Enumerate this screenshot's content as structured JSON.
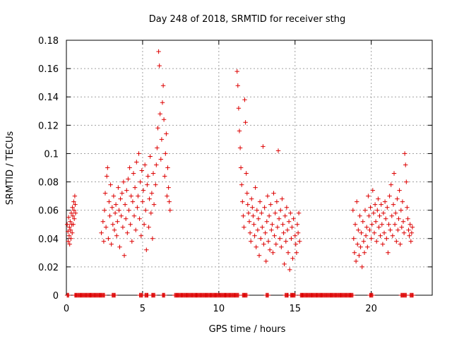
{
  "chart_data": {
    "type": "scatter",
    "title": "Day 248 of 2018, SRMTID for receiver sthg",
    "xlabel": "GPS time / hours",
    "ylabel": "SRMTID / TECUs",
    "xlim": [
      0,
      24
    ],
    "ylim": [
      0,
      0.18
    ],
    "grid": true,
    "legend": "none",
    "marker": "+",
    "colors": {
      "points": "#dd0000",
      "grid": "#a0a0a0",
      "axes": "#000000"
    },
    "x_ticks": [
      0,
      5,
      10,
      15,
      20
    ],
    "x_tick_labels": [
      "0",
      "5",
      "10",
      "15",
      "20"
    ],
    "y_ticks": [
      0,
      0.02,
      0.04,
      0.06,
      0.08,
      0.1,
      0.12,
      0.14,
      0.16,
      0.18
    ],
    "y_tick_labels": [
      "0",
      "0.02",
      "0.04",
      "0.06",
      "0.08",
      "0.1",
      "0.12",
      "0.14",
      "0.16",
      "0.18"
    ],
    "series": [
      {
        "name": "SRMTID",
        "points": [
          [
            0.05,
            0.05
          ],
          [
            0.1,
            0.045
          ],
          [
            0.12,
            0.038
          ],
          [
            0.15,
            0.055
          ],
          [
            0.18,
            0.042
          ],
          [
            0.2,
            0.048
          ],
          [
            0.22,
            0.036
          ],
          [
            0.25,
            0.052
          ],
          [
            0.28,
            0.046
          ],
          [
            0.3,
            0.04
          ],
          [
            0.32,
            0.058
          ],
          [
            0.35,
            0.05
          ],
          [
            0.38,
            0.044
          ],
          [
            0.4,
            0.062
          ],
          [
            0.42,
            0.056
          ],
          [
            0.45,
            0.05
          ],
          [
            0.48,
            0.066
          ],
          [
            0.5,
            0.06
          ],
          [
            0.52,
            0.054
          ],
          [
            0.55,
            0.07
          ],
          [
            0.58,
            0.064
          ],
          [
            0.6,
            0.058
          ],
          [
            2.3,
            0.044
          ],
          [
            2.4,
            0.052
          ],
          [
            2.45,
            0.038
          ],
          [
            2.5,
            0.06
          ],
          [
            2.55,
            0.072
          ],
          [
            2.6,
            0.048
          ],
          [
            2.65,
            0.084
          ],
          [
            2.7,
            0.09
          ],
          [
            2.75,
            0.04
          ],
          [
            2.8,
            0.066
          ],
          [
            2.85,
            0.056
          ],
          [
            2.9,
            0.078
          ],
          [
            2.95,
            0.036
          ],
          [
            3.0,
            0.062
          ],
          [
            3.05,
            0.05
          ],
          [
            3.1,
            0.07
          ],
          [
            3.15,
            0.046
          ],
          [
            3.2,
            0.058
          ],
          [
            3.25,
            0.064
          ],
          [
            3.3,
            0.042
          ],
          [
            3.35,
            0.052
          ],
          [
            3.4,
            0.076
          ],
          [
            3.45,
            0.06
          ],
          [
            3.5,
            0.034
          ],
          [
            3.55,
            0.068
          ],
          [
            3.6,
            0.056
          ],
          [
            3.65,
            0.072
          ],
          [
            3.7,
            0.048
          ],
          [
            3.75,
            0.08
          ],
          [
            3.8,
            0.028
          ],
          [
            3.85,
            0.064
          ],
          [
            3.9,
            0.054
          ],
          [
            3.95,
            0.074
          ],
          [
            4.0,
            0.044
          ],
          [
            4.05,
            0.082
          ],
          [
            4.1,
            0.06
          ],
          [
            4.15,
            0.09
          ],
          [
            4.2,
            0.05
          ],
          [
            4.25,
            0.07
          ],
          [
            4.3,
            0.038
          ],
          [
            4.35,
            0.066
          ],
          [
            4.4,
            0.086
          ],
          [
            4.45,
            0.056
          ],
          [
            4.5,
            0.076
          ],
          [
            4.55,
            0.046
          ],
          [
            4.6,
            0.094
          ],
          [
            4.65,
            0.062
          ],
          [
            4.7,
            0.07
          ],
          [
            4.75,
            0.1
          ],
          [
            4.8,
            0.054
          ],
          [
            4.85,
            0.08
          ],
          [
            4.9,
            0.042
          ],
          [
            4.95,
            0.088
          ],
          [
            5.0,
            0.066
          ],
          [
            5.05,
            0.074
          ],
          [
            5.1,
            0.05
          ],
          [
            5.15,
            0.092
          ],
          [
            5.2,
            0.06
          ],
          [
            5.25,
            0.032
          ],
          [
            5.3,
            0.078
          ],
          [
            5.35,
            0.084
          ],
          [
            5.4,
            0.048
          ],
          [
            5.45,
            0.068
          ],
          [
            5.5,
            0.098
          ],
          [
            5.55,
            0.058
          ],
          [
            5.6,
            0.072
          ],
          [
            5.65,
            0.04
          ],
          [
            5.7,
            0.086
          ],
          [
            5.75,
            0.064
          ],
          [
            5.85,
            0.078
          ],
          [
            5.9,
            0.092
          ],
          [
            5.95,
            0.104
          ],
          [
            6.0,
            0.118
          ],
          [
            6.05,
            0.172
          ],
          [
            6.1,
            0.162
          ],
          [
            6.15,
            0.128
          ],
          [
            6.2,
            0.096
          ],
          [
            6.25,
            0.11
          ],
          [
            6.3,
            0.136
          ],
          [
            6.35,
            0.148
          ],
          [
            6.4,
            0.124
          ],
          [
            6.45,
            0.084
          ],
          [
            6.5,
            0.1
          ],
          [
            6.55,
            0.114
          ],
          [
            6.6,
            0.07
          ],
          [
            6.65,
            0.09
          ],
          [
            6.7,
            0.076
          ],
          [
            6.75,
            0.066
          ],
          [
            6.8,
            0.06
          ],
          [
            11.2,
            0.158
          ],
          [
            11.25,
            0.148
          ],
          [
            11.3,
            0.132
          ],
          [
            11.35,
            0.116
          ],
          [
            11.4,
            0.104
          ],
          [
            11.45,
            0.09
          ],
          [
            11.5,
            0.078
          ],
          [
            11.55,
            0.066
          ],
          [
            11.6,
            0.056
          ],
          [
            11.65,
            0.048
          ],
          [
            11.7,
            0.138
          ],
          [
            11.75,
            0.122
          ],
          [
            11.8,
            0.086
          ],
          [
            11.85,
            0.072
          ],
          [
            11.9,
            0.064
          ],
          [
            11.95,
            0.058
          ],
          [
            12.0,
            0.052
          ],
          [
            12.05,
            0.044
          ],
          [
            12.1,
            0.038
          ],
          [
            12.15,
            0.068
          ],
          [
            12.2,
            0.062
          ],
          [
            12.25,
            0.056
          ],
          [
            12.3,
            0.05
          ],
          [
            12.35,
            0.042
          ],
          [
            12.4,
            0.076
          ],
          [
            12.45,
            0.034
          ],
          [
            12.5,
            0.06
          ],
          [
            12.55,
            0.046
          ],
          [
            12.6,
            0.054
          ],
          [
            12.65,
            0.028
          ],
          [
            12.7,
            0.066
          ],
          [
            12.75,
            0.04
          ],
          [
            12.8,
            0.058
          ],
          [
            12.85,
            0.048
          ],
          [
            12.9,
            0.105
          ],
          [
            12.95,
            0.036
          ],
          [
            13.0,
            0.062
          ],
          [
            13.05,
            0.044
          ],
          [
            13.1,
            0.024
          ],
          [
            13.15,
            0.052
          ],
          [
            13.2,
            0.07
          ],
          [
            13.25,
            0.038
          ],
          [
            13.3,
            0.056
          ],
          [
            13.35,
            0.032
          ],
          [
            13.4,
            0.064
          ],
          [
            13.45,
            0.046
          ],
          [
            13.5,
            0.05
          ],
          [
            13.55,
            0.03
          ],
          [
            13.6,
            0.072
          ],
          [
            13.65,
            0.042
          ],
          [
            13.7,
            0.058
          ],
          [
            13.75,
            0.036
          ],
          [
            13.8,
            0.066
          ],
          [
            13.85,
            0.048
          ],
          [
            13.9,
            0.102
          ],
          [
            13.95,
            0.054
          ],
          [
            14.0,
            0.04
          ],
          [
            14.05,
            0.06
          ],
          [
            14.1,
            0.034
          ],
          [
            14.15,
            0.068
          ],
          [
            14.2,
            0.05
          ],
          [
            14.25,
            0.044
          ],
          [
            14.3,
            0.022
          ],
          [
            14.35,
            0.056
          ],
          [
            14.4,
            0.038
          ],
          [
            14.45,
            0.062
          ],
          [
            14.5,
            0.046
          ],
          [
            14.55,
            0.03
          ],
          [
            14.6,
            0.052
          ],
          [
            14.65,
            0.018
          ],
          [
            14.7,
            0.058
          ],
          [
            14.75,
            0.04
          ],
          [
            14.8,
            0.048
          ],
          [
            14.85,
            0.026
          ],
          [
            14.9,
            0.054
          ],
          [
            15.0,
            0.042
          ],
          [
            15.05,
            0.036
          ],
          [
            15.1,
            0.03
          ],
          [
            15.15,
            0.05
          ],
          [
            15.2,
            0.044
          ],
          [
            15.25,
            0.058
          ],
          [
            15.3,
            0.038
          ],
          [
            18.8,
            0.06
          ],
          [
            18.85,
            0.04
          ],
          [
            18.9,
            0.03
          ],
          [
            18.95,
            0.05
          ],
          [
            19.0,
            0.024
          ],
          [
            19.05,
            0.066
          ],
          [
            19.1,
            0.036
          ],
          [
            19.15,
            0.046
          ],
          [
            19.2,
            0.028
          ],
          [
            19.25,
            0.056
          ],
          [
            19.3,
            0.034
          ],
          [
            19.35,
            0.044
          ],
          [
            19.4,
            0.02
          ],
          [
            19.45,
            0.052
          ],
          [
            19.5,
            0.038
          ],
          [
            19.55,
            0.03
          ],
          [
            19.6,
            0.06
          ],
          [
            19.65,
            0.042
          ],
          [
            19.7,
            0.048
          ],
          [
            19.75,
            0.034
          ],
          [
            19.8,
            0.07
          ],
          [
            19.85,
            0.056
          ],
          [
            19.9,
            0.046
          ],
          [
            19.95,
            0.062
          ],
          [
            20.0,
            0.04
          ],
          [
            20.05,
            0.05
          ],
          [
            20.1,
            0.074
          ],
          [
            20.15,
            0.058
          ],
          [
            20.2,
            0.044
          ],
          [
            20.25,
            0.064
          ],
          [
            20.3,
            0.052
          ],
          [
            20.35,
            0.038
          ],
          [
            20.4,
            0.06
          ],
          [
            20.45,
            0.068
          ],
          [
            20.5,
            0.048
          ],
          [
            20.55,
            0.056
          ],
          [
            20.6,
            0.042
          ],
          [
            20.65,
            0.064
          ],
          [
            20.7,
            0.05
          ],
          [
            20.75,
            0.036
          ],
          [
            20.8,
            0.058
          ],
          [
            20.85,
            0.044
          ],
          [
            20.9,
            0.066
          ],
          [
            20.95,
            0.054
          ],
          [
            21.0,
            0.04
          ],
          [
            21.05,
            0.062
          ],
          [
            21.1,
            0.03
          ],
          [
            21.15,
            0.05
          ],
          [
            21.2,
            0.07
          ],
          [
            21.25,
            0.046
          ],
          [
            21.3,
            0.078
          ],
          [
            21.35,
            0.056
          ],
          [
            21.4,
            0.042
          ],
          [
            21.45,
            0.064
          ],
          [
            21.5,
            0.086
          ],
          [
            21.55,
            0.05
          ],
          [
            21.6,
            0.058
          ],
          [
            21.65,
            0.038
          ],
          [
            21.7,
            0.068
          ],
          [
            21.75,
            0.046
          ],
          [
            21.8,
            0.054
          ],
          [
            21.85,
            0.074
          ],
          [
            21.9,
            0.036
          ],
          [
            21.95,
            0.06
          ],
          [
            22.0,
            0.048
          ],
          [
            22.05,
            0.066
          ],
          [
            22.1,
            0.052
          ],
          [
            22.15,
            0.044
          ],
          [
            22.2,
            0.1
          ],
          [
            22.25,
            0.092
          ],
          [
            22.3,
            0.08
          ],
          [
            22.35,
            0.062
          ],
          [
            22.4,
            0.054
          ],
          [
            22.45,
            0.046
          ],
          [
            22.5,
            0.042
          ],
          [
            22.55,
            0.05
          ],
          [
            22.6,
            0.038
          ],
          [
            22.65,
            0.044
          ],
          [
            22.7,
            0.048
          ]
        ]
      }
    ],
    "zero_segments": [
      [
        0.05,
        0.15
      ],
      [
        0.55,
        2.5
      ],
      [
        3.0,
        3.2
      ],
      [
        4.8,
        5.0
      ],
      [
        5.15,
        5.35
      ],
      [
        5.6,
        5.8
      ],
      [
        6.3,
        6.45
      ],
      [
        7.1,
        11.3
      ],
      [
        11.55,
        11.85
      ],
      [
        13.1,
        13.25
      ],
      [
        14.35,
        14.55
      ],
      [
        14.7,
        15.0
      ],
      [
        15.35,
        18.8
      ],
      [
        19.9,
        20.1
      ],
      [
        21.95,
        22.3
      ],
      [
        22.55,
        22.75
      ]
    ]
  }
}
